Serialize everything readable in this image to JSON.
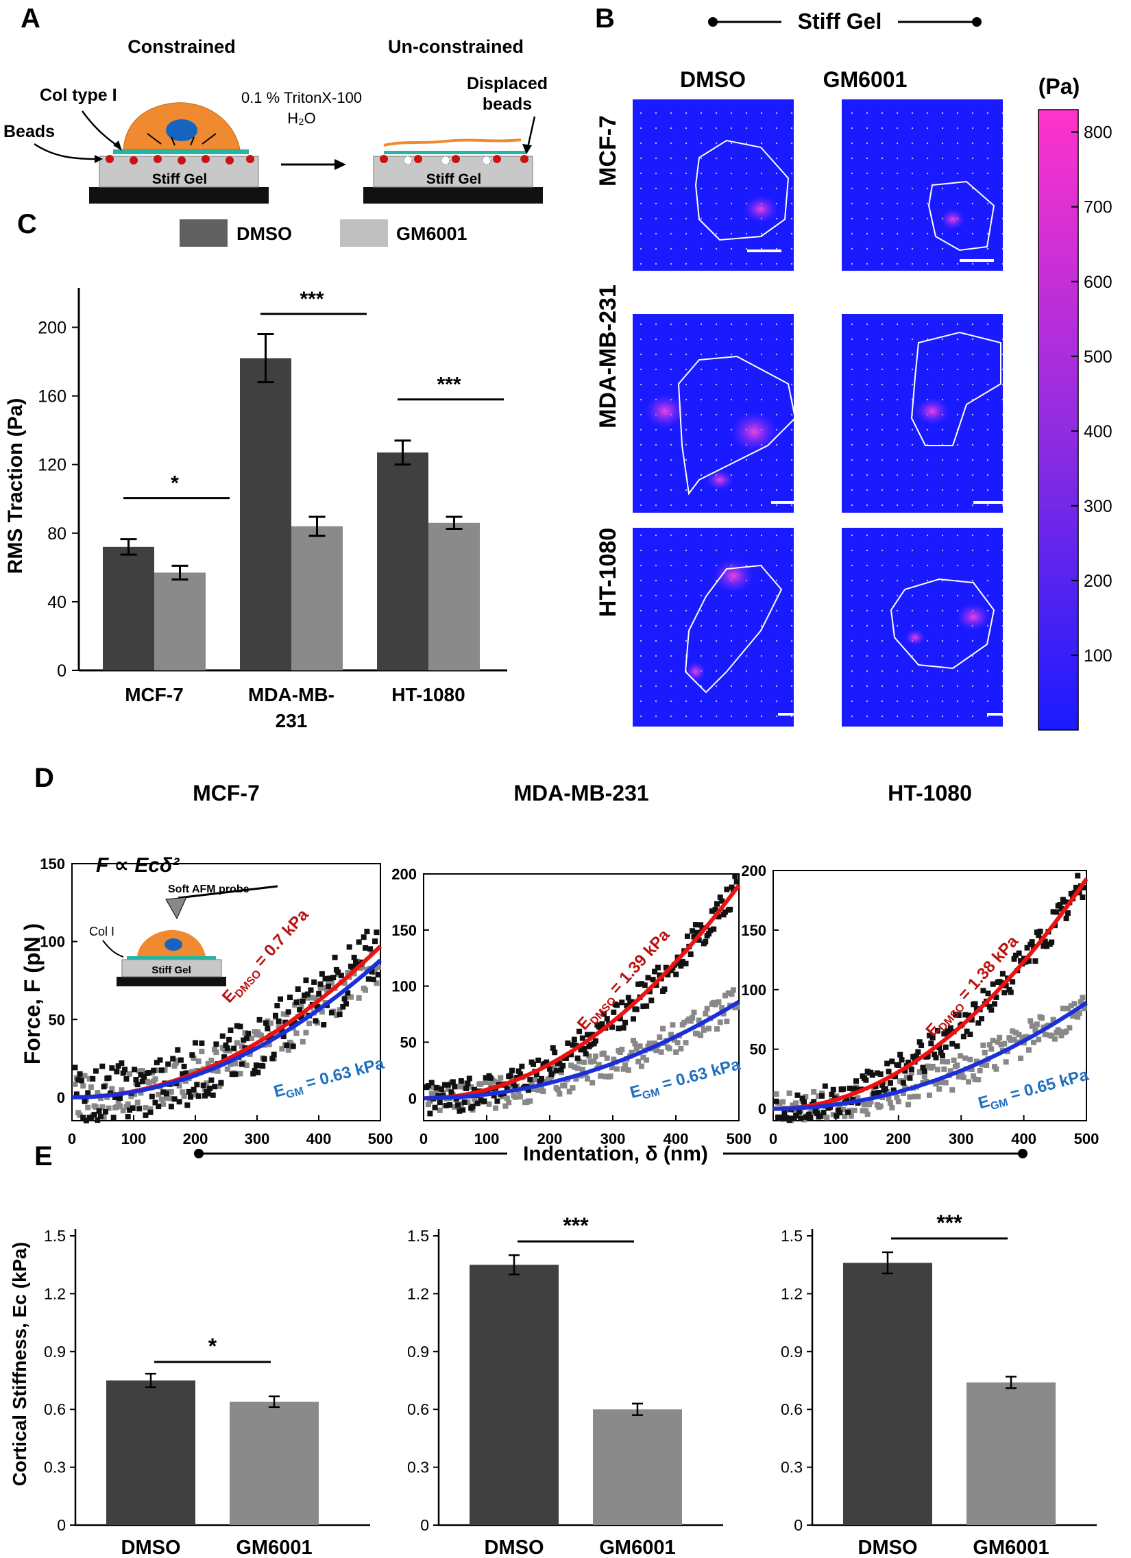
{
  "panels": {
    "A": {
      "letter": "A",
      "constrained": "Constrained",
      "unconstrained": "Un-constrained",
      "col_label": "Col type I",
      "beads_label": "Beads",
      "treatment_line1": "0.1 % TritonX-100",
      "treatment_line2": "H₂O",
      "displaced_line1": "Displaced",
      "displaced_line2": "beads",
      "gel_label": "Stiff Gel"
    },
    "B": {
      "letter": "B",
      "title": "Stiff Gel",
      "col_dmso": "DMSO",
      "col_gm": "GM6001",
      "rows": [
        "MCF-7",
        "MDA-MB-231",
        "HT-1080"
      ],
      "colorbar_unit": "(Pa)",
      "colorbar_ticks": [
        100,
        200,
        300,
        400,
        500,
        600,
        700,
        800
      ],
      "colorbar_range": [
        0,
        830
      ],
      "colors": {
        "low": "#1f1fff",
        "mid": "#8a2be2",
        "high": "#ff33cc"
      }
    },
    "C": {
      "letter": "C"
    },
    "D": {
      "letter": "D",
      "formula": "F ∝ Eᴄδ²",
      "probe_label": "Soft AFM probe",
      "col_label": "Col I",
      "gel_label": "Stiff Gel",
      "ylabel": "Force, F (pN )",
      "xlabel": "Indentation, δ (nm)"
    },
    "E": {
      "letter": "E",
      "ylabel": "Cortical Stiffness, Ec (kPa)"
    }
  },
  "legend": {
    "dmso": "DMSO",
    "gm": "GM6001"
  },
  "colors": {
    "dmso": "#404040",
    "gm": "#8a8a8a",
    "gm_legend": "#c0c0c0",
    "red_fit": "#ee1111",
    "blue_fit": "#1a2fd8",
    "red_label": "#bb1111",
    "blue_label": "#1f6fbf"
  },
  "chart_data": [
    {
      "id": "C",
      "type": "bar",
      "title": "",
      "ylabel": "RMS Traction (Pa)",
      "categories": [
        "MCF-7",
        "MDA-MB-\n231",
        "HT-1080"
      ],
      "series": [
        {
          "name": "DMSO",
          "values": [
            72,
            182,
            127
          ],
          "errors": [
            4.5,
            14,
            7
          ]
        },
        {
          "name": "GM6001",
          "values": [
            57,
            84,
            86
          ],
          "errors": [
            4,
            5.5,
            3.5
          ]
        }
      ],
      "ylim": [
        0,
        215
      ],
      "yticks": [
        0,
        40,
        80,
        120,
        160,
        200
      ],
      "significance": [
        "*",
        "***",
        "***"
      ]
    },
    {
      "id": "D1",
      "type": "scatter",
      "title": "MCF-7",
      "xlim": [
        0,
        500
      ],
      "ylim": [
        -15,
        150
      ],
      "xticks": [
        0,
        100,
        200,
        300,
        400,
        500
      ],
      "yticks": [
        0,
        50,
        100,
        150
      ],
      "fits": [
        {
          "name": "DMSO",
          "label_main": "E",
          "label_sub": "DMSO",
          "label_value": " = 0.7 kPa",
          "modulus": 0.7,
          "y_at_500": 97
        },
        {
          "name": "GM6001",
          "label_main": "E",
          "label_sub": "GM",
          "label_value": " = 0.63 kPa",
          "modulus": 0.63,
          "y_at_500": 88
        }
      ]
    },
    {
      "id": "D2",
      "type": "scatter",
      "title": "MDA-MB-231",
      "xlim": [
        0,
        500
      ],
      "ylim": [
        -20,
        200
      ],
      "xticks": [
        0,
        100,
        200,
        300,
        400,
        500
      ],
      "yticks": [
        0,
        50,
        100,
        150,
        200
      ],
      "fits": [
        {
          "name": "DMSO",
          "label_main": "E",
          "label_sub": "DMSO",
          "label_value": " = 1.39 kPa",
          "modulus": 1.39,
          "y_at_500": 190
        },
        {
          "name": "GM6001",
          "label_main": "E",
          "label_sub": "GM",
          "label_value": " = 0.63 kPa",
          "modulus": 0.63,
          "y_at_500": 86
        }
      ]
    },
    {
      "id": "D3",
      "type": "scatter",
      "title": "HT-1080",
      "xlim": [
        0,
        500
      ],
      "ylim": [
        -10,
        200
      ],
      "xticks": [
        0,
        100,
        200,
        300,
        400,
        500
      ],
      "yticks": [
        0,
        50,
        100,
        150,
        200
      ],
      "fits": [
        {
          "name": "DMSO",
          "label_main": "E",
          "label_sub": "DMSO",
          "label_value": " = 1.38 kPa",
          "modulus": 1.38,
          "y_at_500": 193
        },
        {
          "name": "GM6001",
          "label_main": "E",
          "label_sub": "GM",
          "label_value": " = 0.65 kPa",
          "modulus": 0.65,
          "y_at_500": 89
        }
      ]
    },
    {
      "id": "E1",
      "type": "bar",
      "title": "",
      "categories": [
        "DMSO",
        "GM6001"
      ],
      "values": [
        0.75,
        0.64
      ],
      "errors": [
        0.035,
        0.028
      ],
      "ylim": [
        0,
        1.5
      ],
      "yticks": [
        "0",
        "0.3",
        "0.6",
        "0.9",
        "1.2",
        "1.5"
      ],
      "significance": "*"
    },
    {
      "id": "E2",
      "type": "bar",
      "title": "",
      "categories": [
        "DMSO",
        "GM6001"
      ],
      "values": [
        1.35,
        0.6
      ],
      "errors": [
        0.05,
        0.03
      ],
      "ylim": [
        0,
        1.5
      ],
      "yticks": [
        "0",
        "0.3",
        "0.6",
        "0.9",
        "1.2",
        "1.5"
      ],
      "significance": "***"
    },
    {
      "id": "E3",
      "type": "bar",
      "title": "",
      "categories": [
        "DMSO",
        "GM6001"
      ],
      "values": [
        1.36,
        0.74
      ],
      "errors": [
        0.055,
        0.03
      ],
      "ylim": [
        0,
        1.5
      ],
      "yticks": [
        "0",
        "0.3",
        "0.6",
        "0.9",
        "1.2",
        "1.5"
      ],
      "significance": "***"
    }
  ]
}
